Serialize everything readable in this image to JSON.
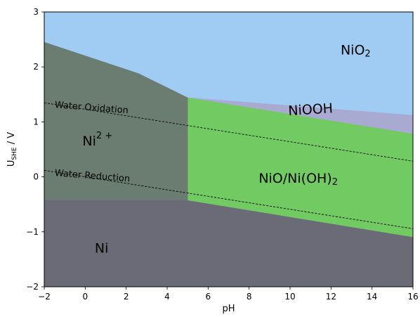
{
  "chart_data": {
    "type": "area",
    "title": "",
    "xlabel": "pH",
    "ylabel": {
      "main": "U",
      "sub": "SHE",
      "suffix": " / V"
    },
    "xlim": [
      -2,
      16
    ],
    "ylim": [
      -2,
      3
    ],
    "xticks": [
      -2,
      0,
      2,
      4,
      6,
      8,
      10,
      12,
      14,
      16
    ],
    "yticks": [
      -2,
      -1,
      0,
      1,
      2,
      3
    ],
    "xtick_labels": [
      "−2",
      "0",
      "2",
      "4",
      "6",
      "8",
      "10",
      "12",
      "14",
      "16"
    ],
    "ytick_labels": [
      "−2",
      "−1",
      "0",
      "1",
      "2",
      "3"
    ],
    "grid": false,
    "regions": [
      {
        "name": "NiO2",
        "label_main": "NiO",
        "label_sub": "2",
        "label_sup": "",
        "color": "#a0cbf3",
        "polygon": [
          [
            -2,
            3
          ],
          [
            16,
            3
          ],
          [
            16,
            1.12
          ],
          [
            5,
            1.44
          ],
          [
            2.6,
            1.88
          ],
          [
            -2,
            2.45
          ]
        ],
        "label_at": [
          13.2,
          2.3
        ]
      },
      {
        "name": "NiOOH",
        "label_main": "NiOOH",
        "label_sub": "",
        "label_sup": "",
        "color": "#a9aad2",
        "polygon": [
          [
            2.6,
            1.88
          ],
          [
            5,
            1.44
          ],
          [
            16,
            1.12
          ],
          [
            16,
            0.78
          ],
          [
            5,
            1.44
          ]
        ],
        "label_at": [
          11.0,
          1.22
        ],
        "label_rotate_deg": -3.5
      },
      {
        "name": "NiO/Ni(OH)2",
        "label_main": "NiO/Ni(OH)",
        "label_sub": "2",
        "label_sup": "",
        "color": "#72cb62",
        "polygon": [
          [
            5,
            1.44
          ],
          [
            16,
            0.78
          ],
          [
            16,
            -1.1
          ],
          [
            5,
            -0.43
          ]
        ],
        "label_at": [
          10.4,
          -0.03
        ]
      },
      {
        "name": "Ni2+",
        "label_main": "Ni",
        "label_sub": "",
        "label_sup": "2 +",
        "color": "#6b7d70",
        "polygon": [
          [
            -2,
            2.45
          ],
          [
            2.6,
            1.88
          ],
          [
            5,
            1.44
          ],
          [
            5,
            -0.43
          ],
          [
            -2,
            -0.43
          ]
        ],
        "label_at": [
          0.6,
          0.65
        ]
      },
      {
        "name": "Ni",
        "label_main": "Ni",
        "label_sub": "",
        "label_sup": "",
        "color": "#6b6b78",
        "polygon": [
          [
            -2,
            -0.43
          ],
          [
            5,
            -0.43
          ],
          [
            16,
            -1.1
          ],
          [
            16,
            -2
          ],
          [
            -2,
            -2
          ]
        ],
        "label_at": [
          0.8,
          -1.3
        ]
      }
    ],
    "lines": [
      {
        "name": "Water Oxidation",
        "x": [
          -2,
          16
        ],
        "y": [
          1.347,
          0.285
        ],
        "style": "dashed",
        "label_at": [
          -1.5,
          1.26
        ],
        "label_rotate_deg": 4.5
      },
      {
        "name": "Water Reduction",
        "x": [
          -2,
          16
        ],
        "y": [
          0.118,
          -0.944
        ],
        "style": "dashed",
        "label_at": [
          -1.5,
          0.02
        ],
        "label_rotate_deg": 4.5
      }
    ]
  }
}
